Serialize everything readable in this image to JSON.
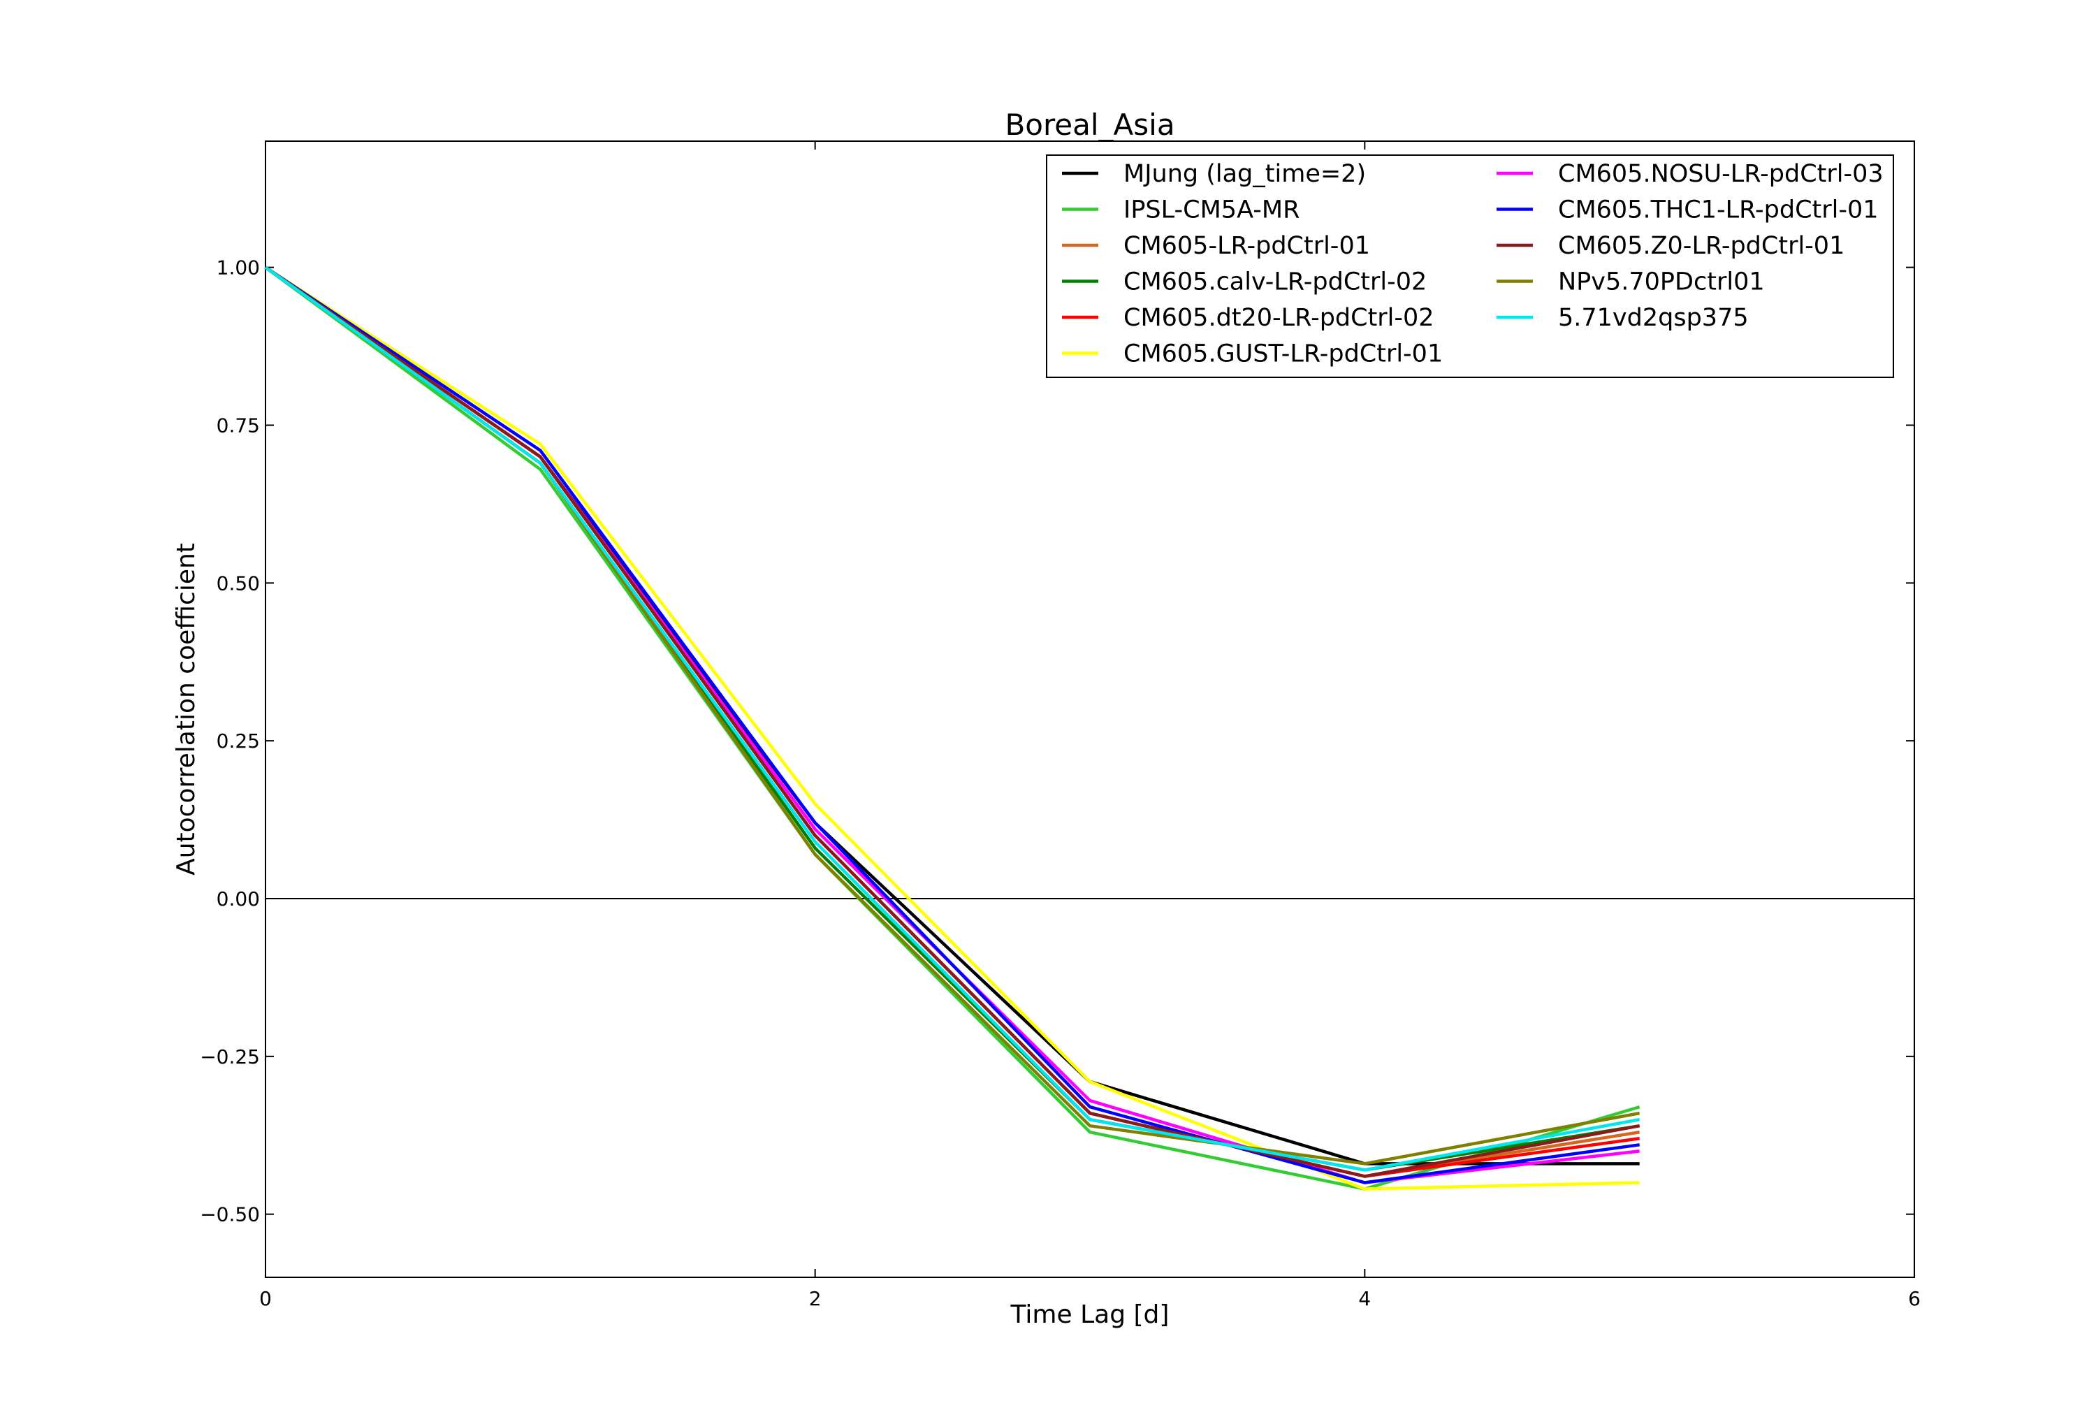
{
  "chart_data": {
    "type": "line",
    "title": "Boreal_Asia",
    "xlabel": "Time Lag [d]",
    "ylabel": "Autocorrelation coefficient",
    "xlim": [
      0,
      6
    ],
    "ylim": [
      -0.6,
      1.2
    ],
    "xticks": [
      0,
      2,
      4,
      6
    ],
    "xtick_labels": [
      "0",
      "2",
      "4",
      "6"
    ],
    "yticks": [
      1.0,
      0.75,
      0.5,
      0.25,
      0.0,
      -0.25,
      -0.5
    ],
    "ytick_labels": [
      "1.00",
      "0.75",
      "0.50",
      "0.25",
      "0.00",
      "−0.25",
      "−0.50"
    ],
    "zero_line": true,
    "grid": false,
    "legend_position": "upper-right",
    "legend_columns": 2,
    "x": [
      0,
      1,
      2,
      3,
      4,
      5
    ],
    "series": [
      {
        "name": "MJung (lag_time=2)",
        "color": "#000000",
        "values": [
          1.0,
          0.7,
          0.12,
          -0.29,
          -0.42,
          -0.42
        ]
      },
      {
        "name": "IPSL-CM5A-MR",
        "color": "#33cc33",
        "values": [
          1.0,
          0.68,
          0.07,
          -0.37,
          -0.46,
          -0.33
        ]
      },
      {
        "name": "CM605-LR-pdCtrl-01",
        "color": "#d2691e",
        "values": [
          1.0,
          0.7,
          0.1,
          -0.34,
          -0.44,
          -0.37
        ]
      },
      {
        "name": "CM605.calv-LR-pdCtrl-02",
        "color": "#008000",
        "values": [
          1.0,
          0.69,
          0.08,
          -0.35,
          -0.43,
          -0.36
        ]
      },
      {
        "name": "CM605.dt20-LR-pdCtrl-02",
        "color": "#ff0000",
        "values": [
          1.0,
          0.7,
          0.1,
          -0.34,
          -0.44,
          -0.38
        ]
      },
      {
        "name": "CM605.GUST-LR-pdCtrl-01",
        "color": "#ffff00",
        "values": [
          1.0,
          0.72,
          0.15,
          -0.29,
          -0.46,
          -0.45
        ]
      },
      {
        "name": "CM605.NOSU-LR-pdCtrl-03",
        "color": "#ff00ff",
        "values": [
          1.0,
          0.7,
          0.11,
          -0.32,
          -0.45,
          -0.4
        ]
      },
      {
        "name": "CM605.THC1-LR-pdCtrl-01",
        "color": "#0000ff",
        "values": [
          1.0,
          0.71,
          0.12,
          -0.33,
          -0.45,
          -0.39
        ]
      },
      {
        "name": "CM605.Z0-LR-pdCtrl-01",
        "color": "#8b1a1a",
        "values": [
          1.0,
          0.7,
          0.1,
          -0.34,
          -0.44,
          -0.36
        ]
      },
      {
        "name": "NPv5.70PDctrl01",
        "color": "#808000",
        "values": [
          1.0,
          0.69,
          0.07,
          -0.36,
          -0.42,
          -0.34
        ]
      },
      {
        "name": "5.71vd2qsp375",
        "color": "#00e5ee",
        "values": [
          1.0,
          0.69,
          0.09,
          -0.35,
          -0.43,
          -0.35
        ]
      }
    ]
  }
}
